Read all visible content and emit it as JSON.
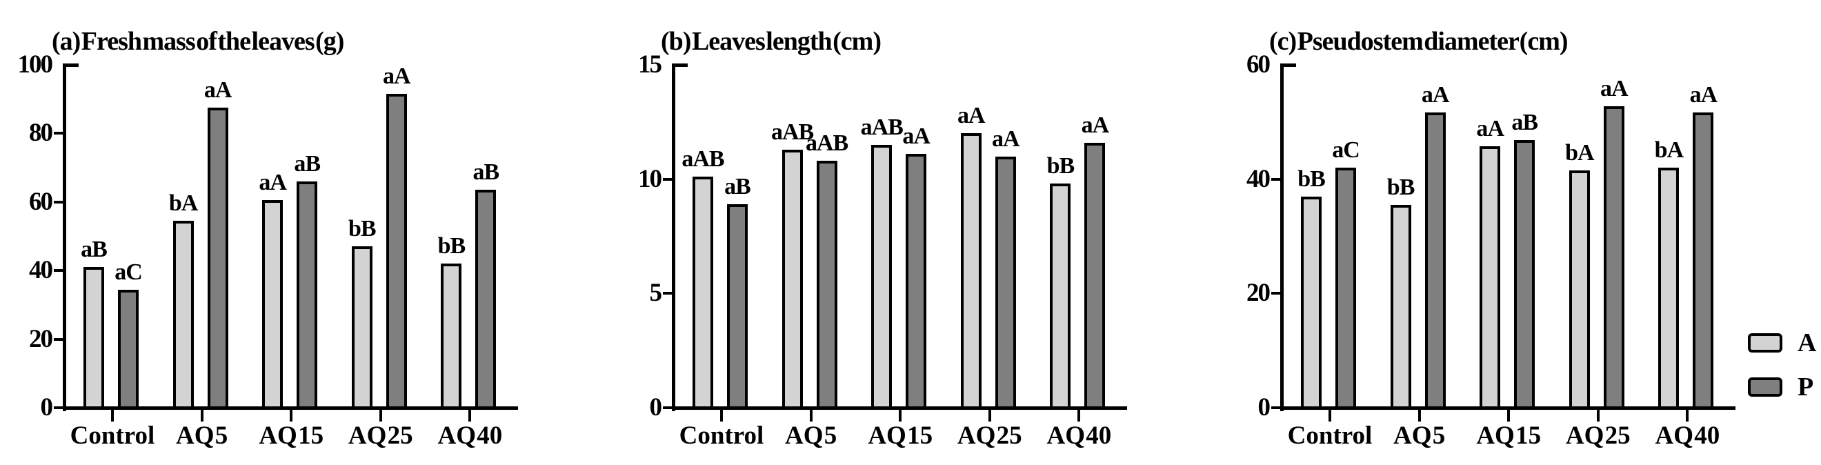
{
  "chart_data": [
    {
      "type": "bar",
      "panel": "a",
      "title": "(a) Fresh mass of the leaves (g)",
      "categories": [
        "Control",
        "AQ 5",
        "AQ 15",
        "AQ 25",
        "AQ 40"
      ],
      "series": [
        {
          "name": "A",
          "color": "#d3d3d3",
          "values": [
            41,
            54.5,
            60.5,
            47,
            42
          ],
          "annotations": [
            "aB",
            "bA",
            "aA",
            "bB",
            "bB"
          ]
        },
        {
          "name": "P",
          "color": "#7f7f7f",
          "values": [
            34.5,
            87.5,
            66,
            91.5,
            63.5
          ],
          "annotations": [
            "aC",
            "aA",
            "aB",
            "aA",
            "aB"
          ]
        }
      ],
      "ylim": [
        0,
        100
      ],
      "yticks": [
        0,
        20,
        40,
        60,
        80,
        100
      ],
      "grid": false,
      "legend_position": "none"
    },
    {
      "type": "bar",
      "panel": "b",
      "title": "(b) Leaves length (cm)",
      "categories": [
        "Control",
        "AQ 5",
        "AQ 15",
        "AQ 25",
        "AQ 40"
      ],
      "series": [
        {
          "name": "A",
          "color": "#d3d3d3",
          "values": [
            10.1,
            11.3,
            11.5,
            12,
            9.8
          ],
          "annotations": [
            "aAB",
            "aAB",
            "aAB",
            "aA",
            "bB"
          ]
        },
        {
          "name": "P",
          "color": "#7f7f7f",
          "values": [
            8.9,
            10.8,
            11.1,
            11,
            11.6
          ],
          "annotations": [
            "aB",
            "aAB",
            "aA",
            "aA",
            "aA"
          ]
        }
      ],
      "ylim": [
        0,
        15
      ],
      "yticks": [
        0,
        5,
        10,
        15
      ],
      "grid": false,
      "legend_position": "none"
    },
    {
      "type": "bar",
      "panel": "c",
      "title": "(c) Pseudostem diameter (cm)",
      "categories": [
        "Control",
        "AQ 5",
        "AQ 15",
        "AQ 25",
        "AQ 40"
      ],
      "series": [
        {
          "name": "A",
          "color": "#d3d3d3",
          "values": [
            37,
            35.5,
            45.7,
            41.5,
            42
          ],
          "annotations": [
            "bB",
            "bB",
            "aA",
            "bA",
            "bA"
          ]
        },
        {
          "name": "P",
          "color": "#7f7f7f",
          "values": [
            42,
            51.7,
            46.8,
            52.8,
            51.7
          ],
          "annotations": [
            "aC",
            "aA",
            "aB",
            "aA",
            "aA"
          ]
        }
      ],
      "ylim": [
        0,
        60
      ],
      "yticks": [
        0,
        20,
        40,
        60
      ],
      "grid": false,
      "legend_position": "right-of-panel-c"
    }
  ],
  "legend": {
    "entries": [
      {
        "label": "A",
        "color": "#d3d3d3"
      },
      {
        "label": "P",
        "color": "#7f7f7f"
      }
    ]
  },
  "colors": {
    "background": "#ffffff",
    "axis": "#000000",
    "text": "#000000",
    "bar_border": "#000000",
    "series_A": "#d3d3d3",
    "series_P": "#7f7f7f"
  }
}
